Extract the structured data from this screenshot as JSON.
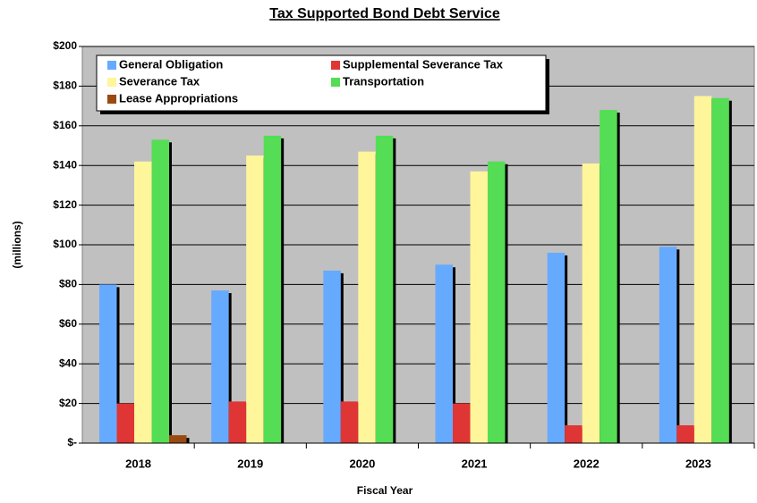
{
  "chart_data": {
    "type": "bar",
    "title": "Tax Supported Bond Debt Service",
    "xlabel": "Fiscal Year",
    "ylabel": "(millions)",
    "categories": [
      "2018",
      "2019",
      "2020",
      "2021",
      "2022",
      "2023"
    ],
    "series": [
      {
        "name": "General Obligation",
        "color": "#66aaff",
        "values": [
          80,
          77,
          87,
          90,
          96,
          99
        ]
      },
      {
        "name": "Supplemental Severance Tax",
        "color": "#e03535",
        "values": [
          20,
          21,
          21,
          20,
          9,
          9
        ]
      },
      {
        "name": "Severance Tax",
        "color": "#fff59a",
        "values": [
          142,
          145,
          147,
          137,
          141,
          175
        ]
      },
      {
        "name": "Transportation",
        "color": "#55dd55",
        "values": [
          153,
          155,
          155,
          142,
          168,
          174
        ]
      },
      {
        "name": "Lease Appropriations",
        "color": "#9a4a10",
        "values": [
          4,
          0,
          0,
          0,
          0,
          0
        ]
      }
    ],
    "ylim": [
      0,
      200
    ],
    "yticks": [
      {
        "value": 0,
        "label": "$-"
      },
      {
        "value": 20,
        "label": "$20"
      },
      {
        "value": 40,
        "label": "$40"
      },
      {
        "value": 60,
        "label": "$60"
      },
      {
        "value": 80,
        "label": "$80"
      },
      {
        "value": 100,
        "label": "$100"
      },
      {
        "value": 120,
        "label": "$120"
      },
      {
        "value": 140,
        "label": "$140"
      },
      {
        "value": 160,
        "label": "$160"
      },
      {
        "value": 180,
        "label": "$180"
      },
      {
        "value": 200,
        "label": "$200"
      }
    ],
    "grid": true,
    "legend": "upper left"
  }
}
